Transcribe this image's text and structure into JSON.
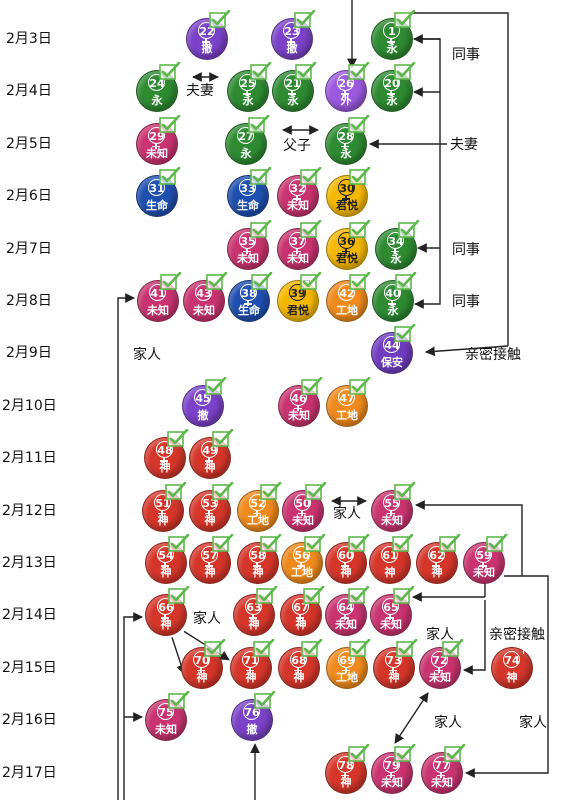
{
  "colors": {
    "yong": "#2e8b32",
    "che": "#7b42c9",
    "wai": "#9b59e0",
    "weizhi": "#c9336f",
    "shengming": "#1f4fb0",
    "junyue": "#f5b800",
    "gongdi": "#f08a1c",
    "baoan": "#6f3cc0",
    "shen": "#d6362a",
    "check": "#5bb84a",
    "line": "#222222"
  },
  "dates": [
    "2月3日",
    "2月4日",
    "2月5日",
    "2月6日",
    "2月7日",
    "2月8日",
    "2月9日",
    "2月10日",
    "2月11日",
    "2月12日",
    "2月13日",
    "2月14日",
    "2月15日",
    "2月16日",
    "2月17日"
  ],
  "nodes": [
    {
      "id": "22",
      "label": "撤",
      "color": "che",
      "sex": "f",
      "row": 0,
      "col": 207
    },
    {
      "id": "23",
      "label": "撤",
      "color": "che",
      "sex": "f",
      "row": 0,
      "col": 292
    },
    {
      "id": "1",
      "label": "永",
      "color": "yong",
      "sex": "f",
      "row": 0,
      "col": 392
    },
    {
      "id": "24",
      "label": "永",
      "color": "yong",
      "sex": "m",
      "row": 1,
      "col": 157
    },
    {
      "id": "25",
      "label": "永",
      "color": "yong",
      "sex": "f",
      "row": 1,
      "col": 248
    },
    {
      "id": "21",
      "label": "永",
      "color": "yong",
      "sex": "f",
      "row": 1,
      "col": 293
    },
    {
      "id": "26",
      "label": "外",
      "color": "wai",
      "sex": "f",
      "row": 1,
      "col": 346
    },
    {
      "id": "20",
      "label": "永",
      "color": "yong",
      "sex": "f",
      "row": 1,
      "col": 392
    },
    {
      "id": "29",
      "label": "未知",
      "color": "weizhi",
      "sex": "f",
      "row": 2,
      "col": 157
    },
    {
      "id": "27",
      "label": "永",
      "color": "yong",
      "sex": "m",
      "row": 2,
      "col": 246
    },
    {
      "id": "28",
      "label": "永",
      "color": "yong",
      "sex": "f",
      "row": 2,
      "col": 346
    },
    {
      "id": "31",
      "label": "生命",
      "color": "shengming",
      "sex": "m",
      "row": 3,
      "col": 157
    },
    {
      "id": "33",
      "label": "生命",
      "color": "shengming",
      "sex": "m",
      "row": 3,
      "col": 248
    },
    {
      "id": "32",
      "label": "未知",
      "color": "weizhi",
      "sex": "f",
      "row": 3,
      "col": 298
    },
    {
      "id": "30",
      "label": "君悦",
      "color": "junyue",
      "sex": "f",
      "row": 3,
      "col": 347
    },
    {
      "id": "35",
      "label": "未知",
      "color": "weizhi",
      "sex": "f",
      "row": 4,
      "col": 248
    },
    {
      "id": "37",
      "label": "未知",
      "color": "weizhi",
      "sex": "f",
      "row": 4,
      "col": 298
    },
    {
      "id": "36",
      "label": "君悦",
      "color": "junyue",
      "sex": "f",
      "row": 4,
      "col": 347
    },
    {
      "id": "34",
      "label": "永",
      "color": "yong",
      "sex": "f",
      "row": 4,
      "col": 396
    },
    {
      "id": "41",
      "label": "未知",
      "color": "weizhi",
      "sex": "m",
      "row": 5,
      "col": 158
    },
    {
      "id": "43",
      "label": "未知",
      "color": "weizhi",
      "sex": "m",
      "row": 5,
      "col": 204
    },
    {
      "id": "38",
      "label": "生命",
      "color": "shengming",
      "sex": "f",
      "row": 5,
      "col": 249
    },
    {
      "id": "39",
      "label": "君悦",
      "color": "junyue",
      "sex": "m",
      "row": 5,
      "col": 298
    },
    {
      "id": "42",
      "label": "工地",
      "color": "gongdi",
      "sex": "m",
      "row": 5,
      "col": 347
    },
    {
      "id": "40",
      "label": "永",
      "color": "yong",
      "sex": "f",
      "row": 5,
      "col": 393
    },
    {
      "id": "44",
      "label": "保安",
      "color": "baoan",
      "sex": "m",
      "row": 6,
      "col": 392
    },
    {
      "id": "45",
      "label": "撤",
      "color": "che",
      "sex": "m",
      "row": 7,
      "col": 203
    },
    {
      "id": "46",
      "label": "未知",
      "color": "weizhi",
      "sex": "f",
      "row": 7,
      "col": 299
    },
    {
      "id": "47",
      "label": "工地",
      "color": "gongdi",
      "sex": "m",
      "row": 7,
      "col": 347
    },
    {
      "id": "48",
      "label": "神",
      "color": "shen",
      "sex": "f",
      "row": 8,
      "col": 165
    },
    {
      "id": "49",
      "label": "神",
      "color": "shen",
      "sex": "f",
      "row": 8,
      "col": 210
    },
    {
      "id": "51",
      "label": "神",
      "color": "shen",
      "sex": "f",
      "row": 9,
      "col": 163
    },
    {
      "id": "53",
      "label": "神",
      "color": "shen",
      "sex": "f",
      "row": 9,
      "col": 210
    },
    {
      "id": "52",
      "label": "工地",
      "color": "gongdi",
      "sex": "f",
      "row": 9,
      "col": 258
    },
    {
      "id": "50",
      "label": "未知",
      "color": "weizhi",
      "sex": "f",
      "row": 9,
      "col": 303
    },
    {
      "id": "55",
      "label": "未知",
      "color": "weizhi",
      "sex": "f",
      "row": 9,
      "col": 392
    },
    {
      "id": "54",
      "label": "神",
      "color": "shen",
      "sex": "f",
      "row": 10,
      "col": 166
    },
    {
      "id": "57",
      "label": "神",
      "color": "shen",
      "sex": "f",
      "row": 10,
      "col": 210
    },
    {
      "id": "58",
      "label": "神",
      "color": "shen",
      "sex": "f",
      "row": 10,
      "col": 258
    },
    {
      "id": "56",
      "label": "工地",
      "color": "gongdi",
      "sex": "f",
      "row": 10,
      "col": 302
    },
    {
      "id": "60",
      "label": "神",
      "color": "shen",
      "sex": "f",
      "row": 10,
      "col": 346
    },
    {
      "id": "61",
      "label": "神",
      "color": "shen",
      "sex": "m",
      "row": 10,
      "col": 390
    },
    {
      "id": "62",
      "label": "神",
      "color": "shen",
      "sex": "f",
      "row": 10,
      "col": 437
    },
    {
      "id": "59",
      "label": "未知",
      "color": "weizhi",
      "sex": "f",
      "row": 10,
      "col": 484
    },
    {
      "id": "66",
      "label": "神",
      "color": "shen",
      "sex": "f",
      "row": 11,
      "col": 166
    },
    {
      "id": "63",
      "label": "神",
      "color": "shen",
      "sex": "f",
      "row": 11,
      "col": 254
    },
    {
      "id": "67",
      "label": "神",
      "color": "shen",
      "sex": "f",
      "row": 11,
      "col": 301
    },
    {
      "id": "64",
      "label": "未知",
      "color": "weizhi",
      "sex": "f",
      "row": 11,
      "col": 346
    },
    {
      "id": "65",
      "label": "未知",
      "color": "weizhi",
      "sex": "f",
      "row": 11,
      "col": 391
    },
    {
      "id": "70",
      "label": "神",
      "color": "shen",
      "sex": "f",
      "row": 12,
      "col": 202
    },
    {
      "id": "71",
      "label": "神",
      "color": "shen",
      "sex": "f",
      "row": 12,
      "col": 251
    },
    {
      "id": "68",
      "label": "神",
      "color": "shen",
      "sex": "f",
      "row": 12,
      "col": 299
    },
    {
      "id": "69",
      "label": "工地",
      "color": "gongdi",
      "sex": "f",
      "row": 12,
      "col": 347
    },
    {
      "id": "73",
      "label": "神",
      "color": "shen",
      "sex": "f",
      "row": 12,
      "col": 394
    },
    {
      "id": "72",
      "label": "未知",
      "color": "weizhi",
      "sex": "f",
      "row": 12,
      "col": 440
    },
    {
      "id": "74",
      "label": "神",
      "color": "shen",
      "sex": "m",
      "row": 12,
      "col": 512
    },
    {
      "id": "75",
      "label": "未知",
      "color": "weizhi",
      "sex": "m",
      "row": 13,
      "col": 166
    },
    {
      "id": "76",
      "label": "撤",
      "color": "che",
      "sex": "m",
      "row": 13,
      "col": 252
    },
    {
      "id": "78",
      "label": "神",
      "color": "shen",
      "sex": "f",
      "row": 14,
      "col": 346
    },
    {
      "id": "79",
      "label": "未知",
      "color": "weizhi",
      "sex": "f",
      "row": 14,
      "col": 392
    },
    {
      "id": "77",
      "label": "未知",
      "color": "weizhi",
      "sex": "f",
      "row": 14,
      "col": 442
    }
  ],
  "checks": [
    "22",
    "23",
    "1",
    "24",
    "25",
    "21",
    "26",
    "20",
    "29",
    "27",
    "28",
    "31",
    "33",
    "32",
    "30",
    "35",
    "37",
    "36",
    "34",
    "41",
    "43",
    "38",
    "39",
    "42",
    "40",
    "44",
    "45",
    "46",
    "47",
    "48",
    "49",
    "51",
    "53",
    "52",
    "50",
    "55",
    "54",
    "57",
    "58",
    "56",
    "60",
    "61",
    "62",
    "59",
    "66",
    "63",
    "67",
    "64",
    "65",
    "70",
    "71",
    "68",
    "69",
    "73",
    "72",
    "75",
    "76",
    "78",
    "79",
    "77"
  ],
  "labels": {
    "fuqi_1": "夫妻",
    "tongshi_1": "同事",
    "fuzi": "父子",
    "fuqi_2": "夫妻",
    "tongshi_2": "同事",
    "tongshi_3": "同事",
    "jiaren_1": "家人",
    "qinmi_1": "亲密接触",
    "jiaren_2": "家人",
    "jiaren_3": "家人",
    "jiaren_4": "家人",
    "qinmi_2": "亲密接触",
    "jiaren_5": "家人",
    "jiaren_6": "家人"
  }
}
